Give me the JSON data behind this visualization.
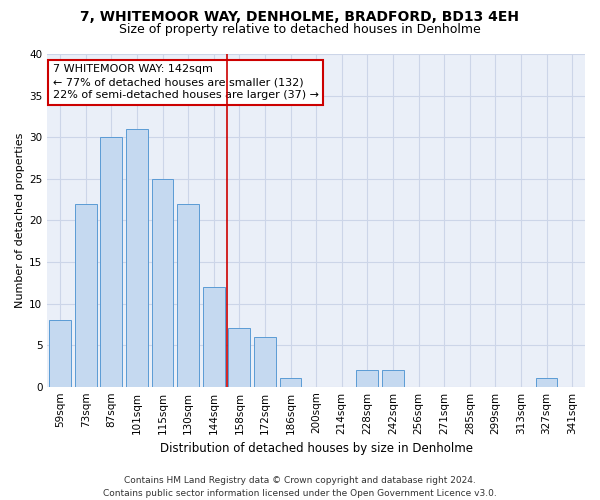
{
  "title": "7, WHITEMOOR WAY, DENHOLME, BRADFORD, BD13 4EH",
  "subtitle": "Size of property relative to detached houses in Denholme",
  "xlabel": "Distribution of detached houses by size in Denholme",
  "ylabel": "Number of detached properties",
  "categories": [
    "59sqm",
    "73sqm",
    "87sqm",
    "101sqm",
    "115sqm",
    "130sqm",
    "144sqm",
    "158sqm",
    "172sqm",
    "186sqm",
    "200sqm",
    "214sqm",
    "228sqm",
    "242sqm",
    "256sqm",
    "271sqm",
    "285sqm",
    "299sqm",
    "313sqm",
    "327sqm",
    "341sqm"
  ],
  "values": [
    8,
    22,
    30,
    31,
    25,
    22,
    12,
    7,
    6,
    1,
    0,
    0,
    2,
    2,
    0,
    0,
    0,
    0,
    0,
    1,
    0
  ],
  "bar_color": "#c5d9f0",
  "bar_edge_color": "#5b9bd5",
  "highlight_index": 6,
  "annotation_line1": "7 WHITEMOOR WAY: 142sqm",
  "annotation_line2": "← 77% of detached houses are smaller (132)",
  "annotation_line3": "22% of semi-detached houses are larger (37) →",
  "annotation_box_color": "#ffffff",
  "annotation_box_edge": "#cc0000",
  "vline_color": "#cc0000",
  "ylim": [
    0,
    40
  ],
  "yticks": [
    0,
    5,
    10,
    15,
    20,
    25,
    30,
    35,
    40
  ],
  "grid_color": "#ccd5e8",
  "bg_color": "#eaeff8",
  "footer": "Contains HM Land Registry data © Crown copyright and database right 2024.\nContains public sector information licensed under the Open Government Licence v3.0.",
  "title_fontsize": 10,
  "subtitle_fontsize": 9,
  "ylabel_fontsize": 8,
  "xlabel_fontsize": 8.5,
  "tick_fontsize": 7.5,
  "annotation_fontsize": 8,
  "footer_fontsize": 6.5
}
